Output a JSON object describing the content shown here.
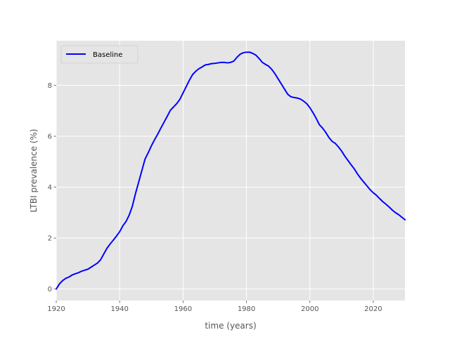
{
  "chart_data": {
    "type": "line",
    "title": "",
    "xlabel": "time (years)",
    "ylabel": "LTBI prevalence (%)",
    "xlim": [
      1920,
      2030
    ],
    "ylim": [
      -0.45,
      9.75
    ],
    "xticks": [
      1920,
      1940,
      1960,
      1980,
      2000,
      2020
    ],
    "yticks": [
      0,
      2,
      4,
      6,
      8
    ],
    "xtick_labels": [
      "1920",
      "1940",
      "1960",
      "1980",
      "2000",
      "2020"
    ],
    "ytick_labels": [
      "0",
      "2",
      "4",
      "6",
      "8"
    ],
    "grid": true,
    "legend_position": "top-left",
    "series": [
      {
        "name": "Baseline",
        "color": "#0000ff",
        "x": [
          1920,
          1921,
          1922,
          1923,
          1924,
          1925,
          1926,
          1927,
          1928,
          1929,
          1930,
          1931,
          1932,
          1933,
          1934,
          1935,
          1936,
          1937,
          1938,
          1939,
          1940,
          1941,
          1942,
          1943,
          1944,
          1945,
          1946,
          1947,
          1948,
          1949,
          1950,
          1951,
          1952,
          1953,
          1954,
          1955,
          1956,
          1957,
          1958,
          1959,
          1960,
          1961,
          1962,
          1963,
          1964,
          1965,
          1966,
          1967,
          1968,
          1969,
          1970,
          1971,
          1972,
          1973,
          1974,
          1975,
          1976,
          1977,
          1978,
          1979,
          1980,
          1981,
          1982,
          1983,
          1984,
          1985,
          1986,
          1987,
          1988,
          1989,
          1990,
          1991,
          1992,
          1993,
          1994,
          1995,
          1996,
          1997,
          1998,
          1999,
          2000,
          2001,
          2002,
          2003,
          2004,
          2005,
          2006,
          2007,
          2008,
          2009,
          2010,
          2011,
          2012,
          2013,
          2014,
          2015,
          2016,
          2017,
          2018,
          2019,
          2020,
          2021,
          2022,
          2023,
          2024,
          2025,
          2026,
          2027,
          2028,
          2029,
          2030
        ],
        "y": [
          0.0,
          0.2,
          0.33,
          0.42,
          0.47,
          0.55,
          0.6,
          0.64,
          0.7,
          0.74,
          0.78,
          0.86,
          0.94,
          1.02,
          1.15,
          1.38,
          1.6,
          1.77,
          1.92,
          2.08,
          2.25,
          2.48,
          2.65,
          2.9,
          3.25,
          3.75,
          4.2,
          4.65,
          5.1,
          5.35,
          5.62,
          5.86,
          6.08,
          6.32,
          6.55,
          6.78,
          7.02,
          7.15,
          7.28,
          7.45,
          7.7,
          7.95,
          8.2,
          8.42,
          8.55,
          8.65,
          8.72,
          8.8,
          8.82,
          8.85,
          8.86,
          8.88,
          8.9,
          8.9,
          8.88,
          8.9,
          8.95,
          9.1,
          9.22,
          9.28,
          9.3,
          9.3,
          9.25,
          9.18,
          9.05,
          8.9,
          8.82,
          8.75,
          8.62,
          8.45,
          8.25,
          8.05,
          7.85,
          7.65,
          7.55,
          7.52,
          7.5,
          7.46,
          7.38,
          7.28,
          7.12,
          6.92,
          6.7,
          6.45,
          6.32,
          6.15,
          5.95,
          5.8,
          5.72,
          5.58,
          5.42,
          5.22,
          5.05,
          4.88,
          4.72,
          4.52,
          4.35,
          4.2,
          4.05,
          3.9,
          3.78,
          3.68,
          3.55,
          3.43,
          3.33,
          3.22,
          3.1,
          3.0,
          2.92,
          2.82,
          2.72
        ]
      }
    ]
  }
}
